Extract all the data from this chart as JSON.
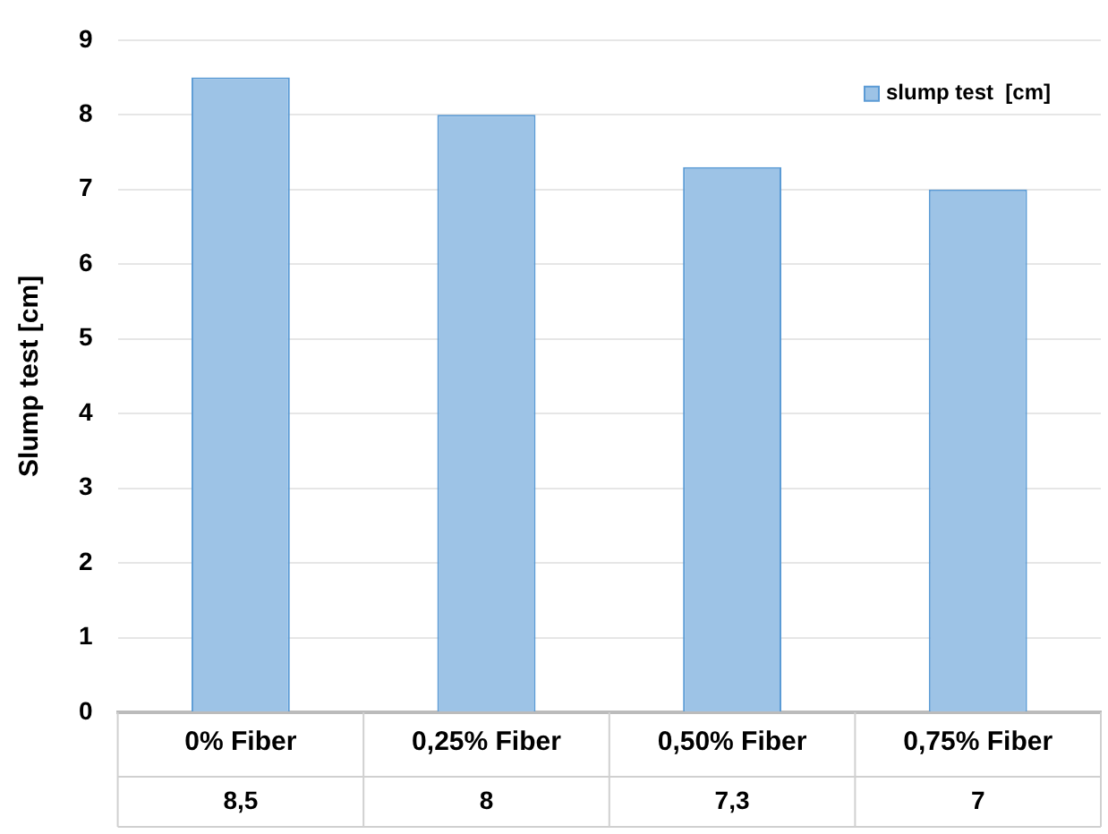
{
  "chart_data": {
    "type": "bar",
    "ylabel": "Slump test [cm]",
    "categories": [
      "0% Fiber",
      "0,25% Fiber",
      "0,50% Fiber",
      "0,75% Fiber"
    ],
    "series": [
      {
        "name": "slump test  [cm]",
        "color": "#9dc3e6",
        "values": [
          8.5,
          8,
          7.3,
          7
        ],
        "value_labels": [
          "8,5",
          "8",
          "7,3",
          "7"
        ]
      }
    ],
    "ylim": [
      0,
      9
    ],
    "yticks": [
      0,
      1,
      2,
      3,
      4,
      5,
      6,
      7,
      8,
      9
    ],
    "grid": "y",
    "legend": "top right"
  }
}
